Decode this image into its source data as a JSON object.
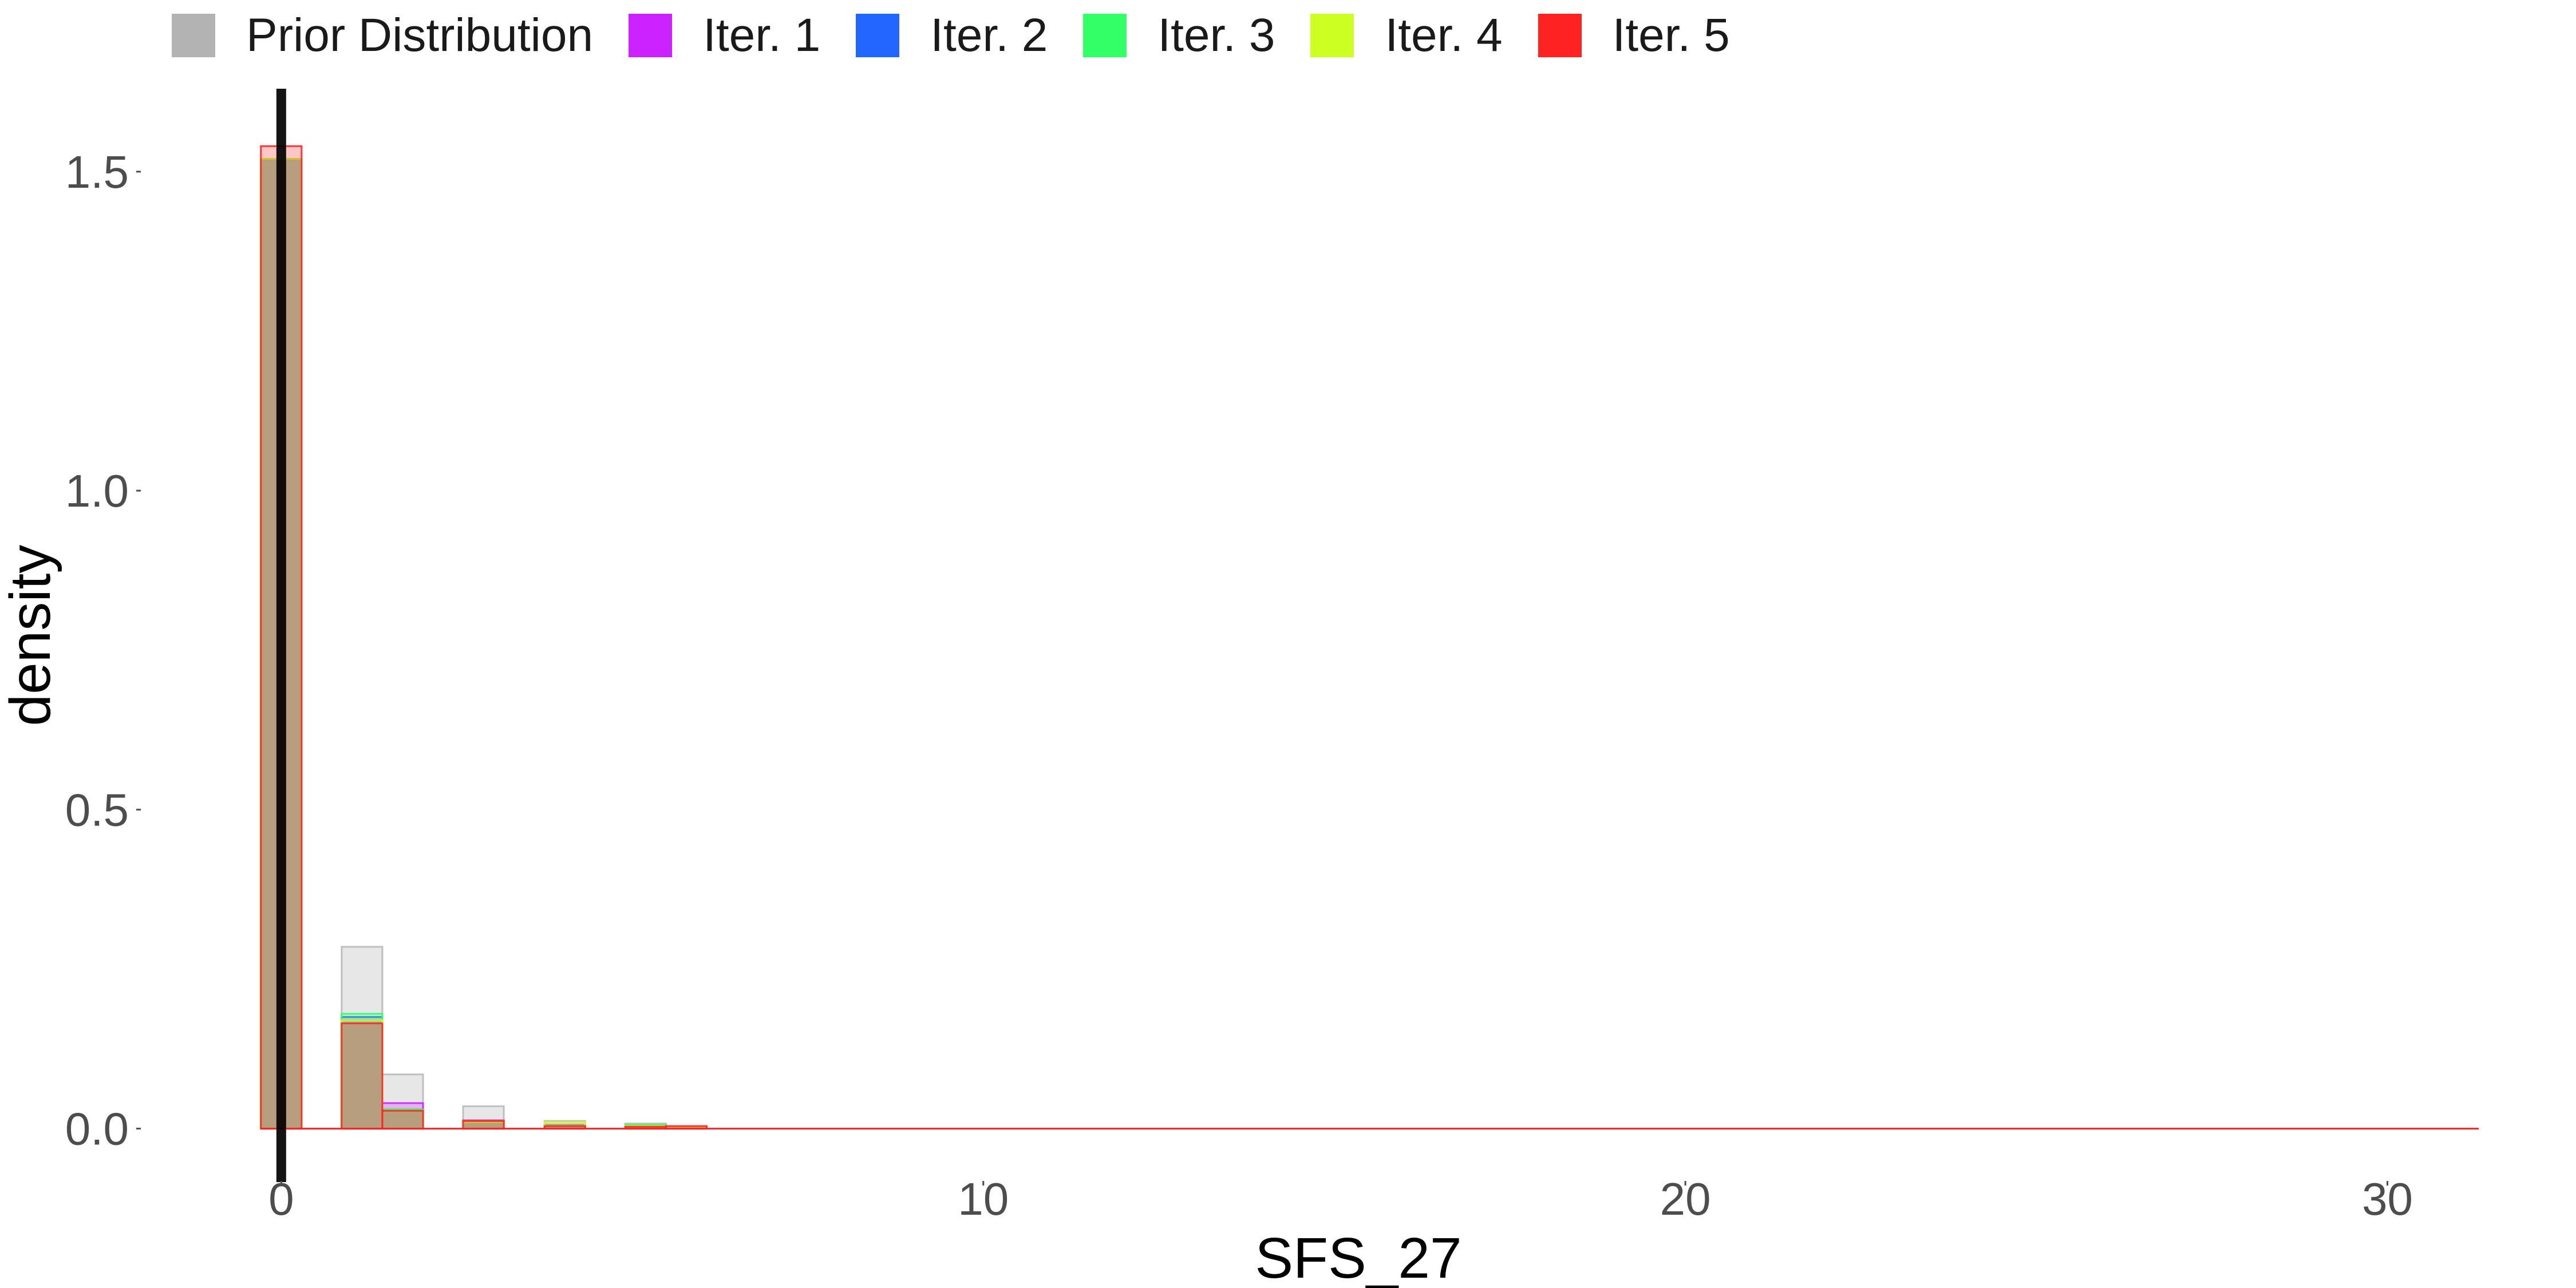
{
  "chart_data": {
    "type": "bar",
    "xlabel": "SFS_27",
    "ylabel": "density",
    "xlim": [
      -0.5,
      31.3
    ],
    "ylim": [
      -0.03,
      1.63
    ],
    "grid": false,
    "legend_position": "top",
    "x_ticks": [
      0,
      10,
      20,
      30
    ],
    "x_tick_labels": [
      "0",
      "10",
      "20",
      "30"
    ],
    "y_ticks": [
      0,
      0.5,
      1.0,
      1.5
    ],
    "y_tick_labels": [
      "0.0",
      "0.5",
      "1.0",
      "1.5"
    ],
    "reference_line_x": 0,
    "bin_width": 0.58,
    "bin_centers": [
      0,
      1.15,
      1.73,
      2.88,
      4.04,
      5.19,
      5.77
    ],
    "series": [
      {
        "name": "Prior Distribution",
        "color": "#b3b3b3",
        "values": [
          1.52,
          0.285,
          0.085,
          0.035,
          0.012,
          0.008,
          0.002
        ]
      },
      {
        "name": "Iter. 1",
        "color": "#cc22ff",
        "values": [
          1.52,
          0.17,
          0.04,
          0.013,
          0.006,
          0.004,
          0.001
        ]
      },
      {
        "name": "Iter. 2",
        "color": "#2266ff",
        "values": [
          1.52,
          0.175,
          0.03,
          0.012,
          0.005,
          0.004,
          0.001
        ]
      },
      {
        "name": "Iter. 3",
        "color": "#33ff66",
        "values": [
          1.52,
          0.18,
          0.03,
          0.012,
          0.005,
          0.006,
          0.001
        ]
      },
      {
        "name": "Iter. 4",
        "color": "#ccff22",
        "values": [
          1.52,
          0.17,
          0.028,
          0.01,
          0.01,
          0.004,
          0.001
        ]
      },
      {
        "name": "Iter. 5",
        "color": "#ff2222",
        "values": [
          1.54,
          0.165,
          0.028,
          0.012,
          0.004,
          0.003,
          0.004
        ]
      }
    ]
  }
}
